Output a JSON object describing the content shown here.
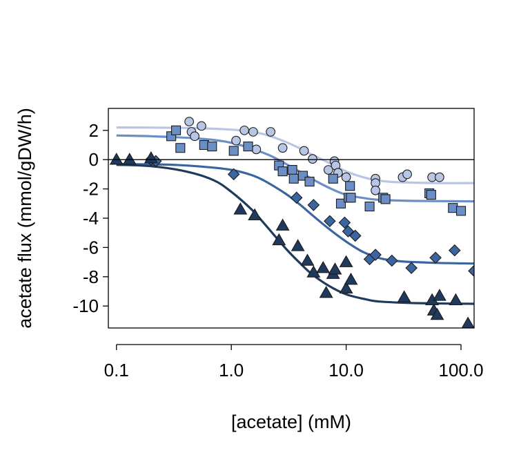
{
  "chart_data": {
    "type": "scatter",
    "title": "",
    "xlabel": "[acetate] (mM)",
    "ylabel": "acetate flux (mmol/gDW/h)",
    "x_scale": "log",
    "xlim": [
      0.085,
      130
    ],
    "ylim": [
      -11.5,
      3.5
    ],
    "x_ticks": [
      0.1,
      1.0,
      10.0,
      100.0
    ],
    "x_tick_labels": [
      "0.1",
      "1.0",
      "10.0",
      "100.0"
    ],
    "y_ticks": [
      2,
      0,
      -2,
      -4,
      -6,
      -8,
      -10
    ],
    "y_tick_labels": [
      "2",
      "0",
      "-2",
      "-4",
      "-6",
      "-8",
      "-10"
    ],
    "reference_line_y": 0,
    "grid": false,
    "legend": "none",
    "series": [
      {
        "marker": "circle",
        "color": "#b7c6e4",
        "points": [
          [
            0.43,
            2.6
          ],
          [
            0.45,
            1.9
          ],
          [
            0.48,
            1.6
          ],
          [
            0.55,
            2.3
          ],
          [
            1.3,
            2.0
          ],
          [
            1.55,
            1.9
          ],
          [
            1.1,
            1.3
          ],
          [
            1.65,
            0.7
          ],
          [
            2.2,
            1.9
          ],
          [
            2.8,
            0.8
          ],
          [
            4.3,
            0.6
          ],
          [
            5.1,
            0.05
          ],
          [
            7.0,
            -0.7
          ],
          [
            7.9,
            -0.1
          ],
          [
            8.1,
            -0.4
          ],
          [
            8.5,
            -0.9
          ],
          [
            10.0,
            -1.2
          ],
          [
            18.0,
            -1.3
          ],
          [
            18.0,
            -1.6
          ],
          [
            18.0,
            -2.1
          ],
          [
            31.0,
            -1.2
          ],
          [
            34.0,
            -1.0
          ],
          [
            56.0,
            -1.2
          ],
          [
            65.0,
            -1.2
          ]
        ],
        "fit": [
          [
            0.1,
            2.2
          ],
          [
            0.2,
            2.19
          ],
          [
            0.5,
            2.15
          ],
          [
            1.0,
            2.05
          ],
          [
            1.5,
            1.9
          ],
          [
            2.0,
            1.7
          ],
          [
            3.0,
            1.2
          ],
          [
            4.0,
            0.75
          ],
          [
            5.0,
            0.35
          ],
          [
            7.0,
            -0.2
          ],
          [
            10.0,
            -0.8
          ],
          [
            14.0,
            -1.2
          ],
          [
            20.0,
            -1.45
          ],
          [
            30.0,
            -1.55
          ],
          [
            60.0,
            -1.6
          ],
          [
            130.0,
            -1.6
          ]
        ]
      },
      {
        "marker": "square",
        "color": "#6a8ec5",
        "points": [
          [
            0.3,
            1.6
          ],
          [
            0.33,
            2.0
          ],
          [
            0.36,
            0.8
          ],
          [
            0.58,
            1.0
          ],
          [
            0.68,
            0.9
          ],
          [
            1.05,
            0.6
          ],
          [
            1.4,
            0.9
          ],
          [
            2.6,
            -0.4
          ],
          [
            2.8,
            -0.8
          ],
          [
            3.4,
            -0.7
          ],
          [
            3.5,
            -1.3
          ],
          [
            4.2,
            -1.1
          ],
          [
            4.8,
            -1.5
          ],
          [
            7.7,
            -1.3
          ],
          [
            9.0,
            -3.0
          ],
          [
            10.5,
            -2.6
          ],
          [
            10.8,
            -1.8
          ],
          [
            11.0,
            -2.6
          ],
          [
            16.0,
            -3.2
          ],
          [
            21.0,
            -2.6
          ],
          [
            22.0,
            -2.7
          ],
          [
            53.0,
            -2.3
          ],
          [
            55.0,
            -2.4
          ],
          [
            85.0,
            -3.3
          ],
          [
            100.0,
            -3.5
          ]
        ],
        "fit": [
          [
            0.1,
            1.65
          ],
          [
            0.2,
            1.6
          ],
          [
            0.5,
            1.45
          ],
          [
            1.0,
            1.15
          ],
          [
            2.0,
            0.4
          ],
          [
            3.0,
            -0.3
          ],
          [
            4.0,
            -0.85
          ],
          [
            5.0,
            -1.3
          ],
          [
            7.0,
            -1.9
          ],
          [
            10.0,
            -2.4
          ],
          [
            15.0,
            -2.65
          ],
          [
            20.0,
            -2.75
          ],
          [
            40.0,
            -2.82
          ],
          [
            130.0,
            -2.85
          ]
        ]
      },
      {
        "marker": "diamond",
        "color": "#3a65a0",
        "points": [
          [
            0.2,
            0.0
          ],
          [
            0.22,
            -0.1
          ],
          [
            1.05,
            -1.0
          ],
          [
            3.7,
            -2.6
          ],
          [
            5.2,
            -3.1
          ],
          [
            7.2,
            -4.2
          ],
          [
            9.7,
            -4.3
          ],
          [
            10.4,
            -4.9
          ],
          [
            12.0,
            -5.2
          ],
          [
            16.0,
            -6.8
          ],
          [
            18.0,
            -6.5
          ],
          [
            25.0,
            -6.9
          ],
          [
            37.0,
            -7.4
          ],
          [
            60.0,
            -6.7
          ],
          [
            88.0,
            -6.2
          ],
          [
            130.0,
            -7.6
          ]
        ],
        "fit": [
          [
            0.1,
            -0.3
          ],
          [
            0.3,
            -0.35
          ],
          [
            0.6,
            -0.5
          ],
          [
            1.0,
            -0.7
          ],
          [
            1.5,
            -1.05
          ],
          [
            2.0,
            -1.5
          ],
          [
            3.0,
            -2.35
          ],
          [
            4.0,
            -3.1
          ],
          [
            5.0,
            -3.75
          ],
          [
            7.0,
            -4.7
          ],
          [
            10.0,
            -5.6
          ],
          [
            14.0,
            -6.3
          ],
          [
            20.0,
            -6.75
          ],
          [
            30.0,
            -6.95
          ],
          [
            60.0,
            -7.05
          ],
          [
            130.0,
            -7.1
          ]
        ]
      },
      {
        "marker": "triangle",
        "color": "#1f3a5d",
        "points": [
          [
            0.1,
            0.0
          ],
          [
            0.13,
            0.0
          ],
          [
            0.2,
            0.1
          ],
          [
            1.2,
            -3.4
          ],
          [
            1.6,
            -3.8
          ],
          [
            2.6,
            -5.5
          ],
          [
            2.8,
            -4.5
          ],
          [
            3.8,
            -5.9
          ],
          [
            4.6,
            -6.9
          ],
          [
            5.2,
            -7.7
          ],
          [
            6.3,
            -7.4
          ],
          [
            6.7,
            -9.1
          ],
          [
            7.7,
            -7.8
          ],
          [
            8.0,
            -7.5
          ],
          [
            10.0,
            -8.8
          ],
          [
            10.0,
            -7.0
          ],
          [
            11.0,
            -8.2
          ],
          [
            32.0,
            -9.4
          ],
          [
            56.0,
            -9.6
          ],
          [
            58.0,
            -10.3
          ],
          [
            62.0,
            -10.6
          ],
          [
            65.0,
            -9.3
          ],
          [
            90.0,
            -9.6
          ],
          [
            115.0,
            -11.2
          ]
        ],
        "fit": [
          [
            0.1,
            -0.35
          ],
          [
            0.2,
            -0.45
          ],
          [
            0.4,
            -0.8
          ],
          [
            0.7,
            -1.4
          ],
          [
            1.0,
            -2.2
          ],
          [
            1.5,
            -3.4
          ],
          [
            2.0,
            -4.5
          ],
          [
            3.0,
            -6.1
          ],
          [
            4.0,
            -7.1
          ],
          [
            5.0,
            -7.8
          ],
          [
            7.0,
            -8.6
          ],
          [
            10.0,
            -9.2
          ],
          [
            15.0,
            -9.55
          ],
          [
            20.0,
            -9.7
          ],
          [
            40.0,
            -9.8
          ],
          [
            130.0,
            -9.85
          ]
        ]
      }
    ]
  }
}
